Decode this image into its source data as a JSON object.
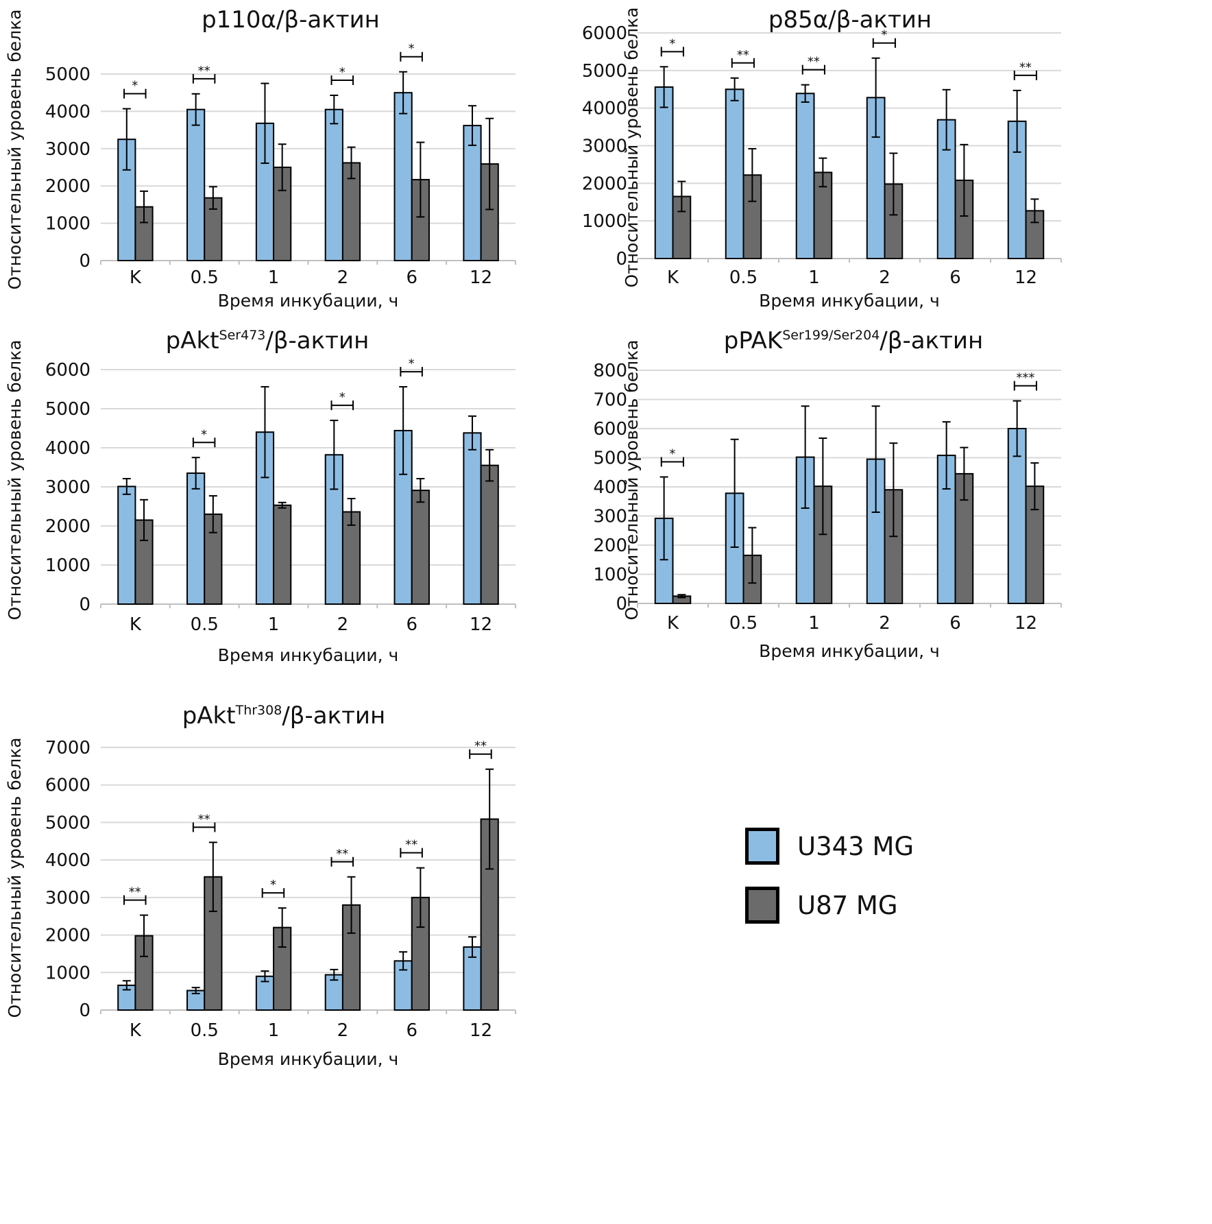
{
  "colors": {
    "u343": "#8DBCE3",
    "u87": "#6B6B6B",
    "grid": "#D9D9D9",
    "axis": "#BFBFBF"
  },
  "legend": {
    "u343": "U343 MG",
    "u87": "U87 MG"
  },
  "chart_data": [
    {
      "type": "bar",
      "title": "p110α/β-актин",
      "title_sup": "",
      "xlabel": "Время инкубации, ч",
      "ylabel": "Относительный уровень белка",
      "categories": [
        "K",
        "0.5",
        "1",
        "2",
        "6",
        "12"
      ],
      "ylim": [
        0,
        5000
      ],
      "yticks": [
        0,
        1000,
        2000,
        3000,
        4000,
        5000
      ],
      "grid": true,
      "series": [
        {
          "name": "U343 MG",
          "values": [
            3250,
            4050,
            3680,
            4050,
            4500,
            3620
          ],
          "errors": [
            820,
            420,
            1070,
            380,
            560,
            530
          ]
        },
        {
          "name": "U87 MG",
          "values": [
            1440,
            1680,
            2500,
            2620,
            2170,
            2590
          ],
          "errors": [
            420,
            300,
            620,
            420,
            1000,
            1220
          ]
        }
      ],
      "significance": [
        "*",
        "**",
        "",
        "*",
        "*",
        ""
      ]
    },
    {
      "type": "bar",
      "title": "p85α/β-актин",
      "title_sup": "",
      "xlabel": "Время инкубации, ч",
      "ylabel": "Относительный уровень белка",
      "categories": [
        "K",
        "0.5",
        "1",
        "2",
        "6",
        "12"
      ],
      "ylim": [
        0,
        6000
      ],
      "yticks": [
        0,
        1000,
        2000,
        3000,
        4000,
        5000,
        6000
      ],
      "grid": true,
      "series": [
        {
          "name": "U343 MG",
          "values": [
            4560,
            4500,
            4390,
            4280,
            3690,
            3650
          ],
          "errors": [
            540,
            300,
            230,
            1050,
            800,
            820
          ]
        },
        {
          "name": "U87 MG",
          "values": [
            1650,
            2220,
            2290,
            1980,
            2080,
            1270
          ],
          "errors": [
            400,
            700,
            380,
            820,
            950,
            310
          ]
        }
      ],
      "significance": [
        "*",
        "**",
        "**",
        "*",
        "",
        "**"
      ]
    },
    {
      "type": "bar",
      "title": "pAkt",
      "title_sup": "Ser473",
      "title_rest": "/β-актин",
      "xlabel": "Время инкубации, ч",
      "ylabel": "Относительный уровень белка",
      "categories": [
        "K",
        "0.5",
        "1",
        "2",
        "6",
        "12"
      ],
      "ylim": [
        0,
        6000
      ],
      "yticks": [
        0,
        1000,
        2000,
        3000,
        4000,
        5000,
        6000
      ],
      "grid": true,
      "series": [
        {
          "name": "U343 MG",
          "values": [
            3010,
            3350,
            4400,
            3820,
            4440,
            4380
          ],
          "errors": [
            200,
            400,
            1160,
            880,
            1120,
            430
          ]
        },
        {
          "name": "U87 MG",
          "values": [
            2150,
            2300,
            2530,
            2360,
            2910,
            3550
          ],
          "errors": [
            520,
            470,
            70,
            340,
            300,
            400
          ]
        }
      ],
      "significance": [
        "",
        "*",
        "",
        "*",
        "*",
        ""
      ]
    },
    {
      "type": "bar",
      "title": "pPAK",
      "title_sup": "Ser199/Ser204",
      "title_rest": "/β-актин",
      "xlabel": "Время инкубации, ч",
      "ylabel": "Относительный уровень белка",
      "categories": [
        "K",
        "0.5",
        "1",
        "2",
        "6",
        "12"
      ],
      "ylim": [
        0,
        800
      ],
      "yticks": [
        0,
        100,
        200,
        300,
        400,
        500,
        600,
        700,
        800
      ],
      "grid": true,
      "series": [
        {
          "name": "U343 MG",
          "values": [
            292,
            378,
            502,
            495,
            508,
            600
          ],
          "errors": [
            142,
            185,
            175,
            182,
            115,
            95
          ]
        },
        {
          "name": "U87 MG",
          "values": [
            25,
            165,
            402,
            390,
            445,
            402
          ],
          "errors": [
            5,
            95,
            165,
            160,
            90,
            80
          ]
        }
      ],
      "significance": [
        "*",
        "",
        "",
        "",
        "",
        "***"
      ]
    },
    {
      "type": "bar",
      "title": "pAkt",
      "title_sup": "Thr308",
      "title_rest": "/β-актин",
      "xlabel": "Время инкубации, ч",
      "ylabel": "Относительный уровень белка",
      "categories": [
        "K",
        "0.5",
        "1",
        "2",
        "6",
        "12"
      ],
      "ylim": [
        0,
        7000
      ],
      "yticks": [
        0,
        1000,
        2000,
        3000,
        4000,
        5000,
        6000,
        7000
      ],
      "grid": true,
      "series": [
        {
          "name": "U343 MG",
          "values": [
            660,
            520,
            900,
            940,
            1310,
            1680
          ],
          "errors": [
            120,
            80,
            140,
            140,
            240,
            270
          ]
        },
        {
          "name": "U87 MG",
          "values": [
            1980,
            3550,
            2200,
            2800,
            3000,
            5090
          ],
          "errors": [
            550,
            920,
            520,
            750,
            790,
            1330
          ]
        }
      ],
      "significance": [
        "**",
        "**",
        "*",
        "**",
        "**",
        "**"
      ]
    }
  ]
}
